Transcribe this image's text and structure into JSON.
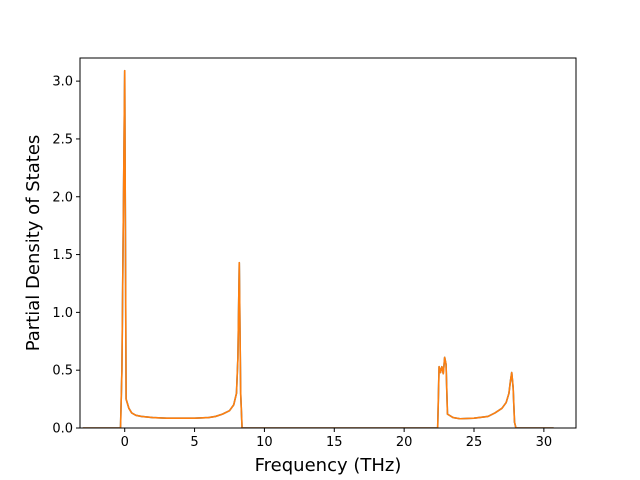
{
  "chart_data": {
    "type": "line",
    "title": "",
    "xlabel": "Frequency (THz)",
    "ylabel": "Partial Density of States",
    "xlim": [
      -3.2,
      32.3
    ],
    "ylim": [
      0.0,
      3.2
    ],
    "x_ticks": [
      0,
      5,
      10,
      15,
      20,
      25,
      30
    ],
    "x_tick_labels": [
      "0",
      "5",
      "10",
      "15",
      "20",
      "25",
      "30"
    ],
    "y_ticks": [
      0.0,
      0.5,
      1.0,
      1.5,
      2.0,
      2.5,
      3.0
    ],
    "y_tick_labels": [
      "0.0",
      "0.5",
      "1.0",
      "1.5",
      "2.0",
      "2.5",
      "3.0"
    ],
    "grid": false,
    "legend": "none",
    "series": [
      {
        "color": "#1f77b4",
        "x": [
          -3.0,
          -0.3,
          -0.2,
          -0.1,
          0.0,
          0.1,
          0.3,
          0.5,
          0.8,
          1.2,
          2.0,
          3.0,
          4.0,
          5.0,
          6.0,
          6.5,
          7.0,
          7.5,
          7.8,
          8.0,
          8.1,
          8.2,
          8.3,
          8.4,
          8.5,
          8.6,
          22.4,
          22.5,
          22.6,
          22.7,
          22.8,
          22.9,
          23.0,
          23.1,
          23.5,
          24.0,
          25.0,
          26.0,
          26.5,
          27.0,
          27.3,
          27.5,
          27.6,
          27.7,
          27.8,
          27.9,
          28.0,
          30.7
        ],
        "y": [
          0.0,
          0.0,
          0.5,
          1.8,
          3.09,
          0.25,
          0.17,
          0.13,
          0.11,
          0.1,
          0.09,
          0.085,
          0.085,
          0.085,
          0.09,
          0.1,
          0.12,
          0.15,
          0.2,
          0.3,
          0.6,
          1.43,
          0.3,
          0.0,
          0.0,
          0.0,
          0.0,
          0.53,
          0.48,
          0.53,
          0.47,
          0.61,
          0.55,
          0.12,
          0.09,
          0.08,
          0.085,
          0.1,
          0.13,
          0.17,
          0.22,
          0.3,
          0.4,
          0.48,
          0.35,
          0.05,
          0.0,
          0.0
        ]
      },
      {
        "color": "#ff7f0e",
        "x": [
          -3.0,
          -0.3,
          -0.2,
          -0.1,
          0.0,
          0.1,
          0.3,
          0.5,
          0.8,
          1.2,
          2.0,
          3.0,
          4.0,
          5.0,
          6.0,
          6.5,
          7.0,
          7.5,
          7.8,
          8.0,
          8.1,
          8.2,
          8.3,
          8.4,
          8.5,
          8.6,
          22.4,
          22.5,
          22.6,
          22.7,
          22.8,
          22.9,
          23.0,
          23.1,
          23.5,
          24.0,
          25.0,
          26.0,
          26.5,
          27.0,
          27.3,
          27.5,
          27.6,
          27.7,
          27.8,
          27.9,
          28.0,
          30.7
        ],
        "y": [
          0.0,
          0.0,
          0.5,
          1.8,
          3.09,
          0.25,
          0.17,
          0.13,
          0.11,
          0.1,
          0.09,
          0.085,
          0.085,
          0.085,
          0.09,
          0.1,
          0.12,
          0.15,
          0.2,
          0.3,
          0.6,
          1.43,
          0.3,
          0.0,
          0.0,
          0.0,
          0.0,
          0.53,
          0.48,
          0.53,
          0.47,
          0.61,
          0.55,
          0.12,
          0.09,
          0.08,
          0.085,
          0.1,
          0.13,
          0.17,
          0.22,
          0.3,
          0.4,
          0.48,
          0.35,
          0.05,
          0.0,
          0.0
        ]
      }
    ]
  }
}
